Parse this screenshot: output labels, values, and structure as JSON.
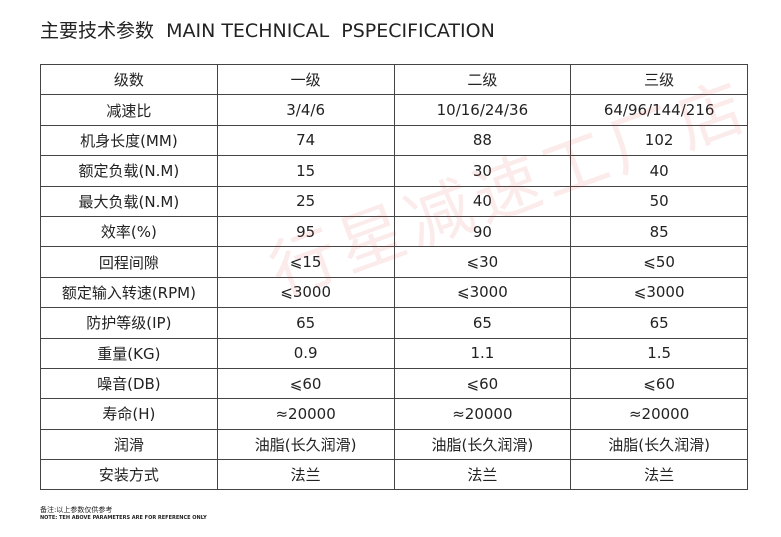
{
  "title": "主要技术参数  MAIN TECHNICAL  PSPECIFICATION",
  "table": {
    "header": [
      "级数",
      "一级",
      "二级",
      "三级"
    ],
    "rows": [
      [
        "减速比",
        "3/4/6",
        "10/16/24/36",
        "64/96/144/216"
      ],
      [
        "机身长度(MM)",
        "74",
        "88",
        "102"
      ],
      [
        "额定负载(N.M)",
        "15",
        "30",
        "40"
      ],
      [
        "最大负载(N.M)",
        "25",
        "40",
        "50"
      ],
      [
        "效率(%)",
        "95",
        "90",
        "85"
      ],
      [
        "回程间隙",
        "⩽15",
        "⩽30",
        "⩽50"
      ],
      [
        "额定输入转速(RPM)",
        "⩽3000",
        "⩽3000",
        "⩽3000"
      ],
      [
        "防护等级(IP)",
        "65",
        "65",
        "65"
      ],
      [
        "重量(KG)",
        "0.9",
        "1.1",
        "1.5"
      ],
      [
        "噪音(DB)",
        "⩽60",
        "⩽60",
        "⩽60"
      ],
      [
        "寿命(H)",
        "≈20000",
        "≈20000",
        "≈20000"
      ],
      [
        "润滑",
        "油脂(长久润滑)",
        "油脂(长久润滑)",
        "油脂(长久润滑)"
      ],
      [
        "安装方式",
        "法兰",
        "法兰",
        "法兰"
      ]
    ]
  },
  "notes": [
    "备注:以上参数仅供参考",
    "NOTE: TEH ABOVE PARAMETERS ARE FOR REFERENCE ONLY"
  ],
  "watermark": "行星减速工厂店"
}
